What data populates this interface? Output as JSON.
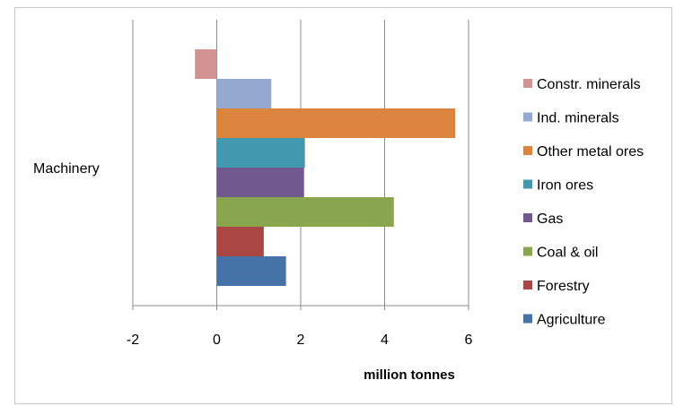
{
  "chart_data": {
    "type": "bar",
    "orientation": "horizontal",
    "categories": [
      "Machinery"
    ],
    "series": [
      {
        "name": "Agriculture",
        "values": [
          1.65
        ],
        "color": "#4572A7"
      },
      {
        "name": "Forestry",
        "values": [
          1.12
        ],
        "color": "#AA4643"
      },
      {
        "name": "Coal & oil",
        "values": [
          4.22
        ],
        "color": "#89A54E"
      },
      {
        "name": "Gas",
        "values": [
          2.08
        ],
        "color": "#71588F"
      },
      {
        "name": "Iron ores",
        "values": [
          2.1
        ],
        "color": "#4198AF"
      },
      {
        "name": "Other metal ores",
        "values": [
          5.68
        ],
        "color": "#DB843D"
      },
      {
        "name": "Ind. minerals",
        "values": [
          1.3
        ],
        "color": "#93A9CF"
      },
      {
        "name": "Constr. minerals",
        "values": [
          -0.52
        ],
        "color": "#D19392"
      }
    ],
    "xlabel": "million tonnes",
    "ylabel": "",
    "xlim": [
      -2,
      6
    ],
    "xticks": [
      "-2",
      "0",
      "2",
      "4",
      "6"
    ],
    "grid": true,
    "legend": "right"
  }
}
